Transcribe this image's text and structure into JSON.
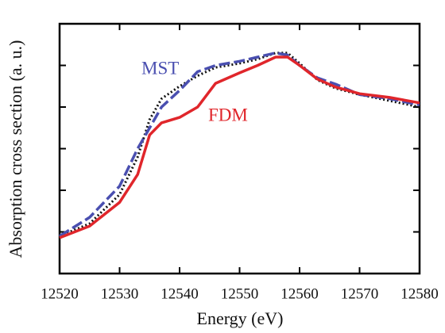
{
  "chart_data": {
    "type": "line",
    "x_label": "Energy (eV)",
    "y_label": "Absorption cross section (a. u.)",
    "x": [
      12520,
      12525,
      12530,
      12533,
      12535,
      12537,
      12540,
      12543,
      12546,
      12550,
      12553,
      12556,
      12558,
      12560,
      12563,
      12566,
      12570,
      12575,
      12580
    ],
    "series": [
      {
        "color": "#111111",
        "dash": "dot",
        "values": [
          0.9,
          1.2,
          1.9,
          2.8,
          3.7,
          4.2,
          4.5,
          4.75,
          4.95,
          5.05,
          5.15,
          5.3,
          5.3,
          5.05,
          4.65,
          4.45,
          4.3,
          4.15,
          4.0
        ]
      },
      {
        "name": "MST",
        "color": "#4a4fb0",
        "dash": "dash",
        "values": [
          0.9,
          1.35,
          2.1,
          3.0,
          3.5,
          4.0,
          4.4,
          4.85,
          5.0,
          5.1,
          5.2,
          5.3,
          5.25,
          5.0,
          4.7,
          4.55,
          4.3,
          4.2,
          4.05
        ]
      },
      {
        "name": "FDM",
        "color": "#e0262b",
        "dash": "solid",
        "values": [
          0.86,
          1.14,
          1.71,
          2.38,
          3.33,
          3.62,
          3.75,
          4.0,
          4.57,
          4.82,
          5.0,
          5.2,
          5.2,
          5.0,
          4.67,
          4.48,
          4.32,
          4.23,
          4.1
        ]
      }
    ],
    "xlim": [
      12520,
      12580
    ],
    "xticks": [
      12520,
      12530,
      12540,
      12550,
      12560,
      12570,
      12580
    ],
    "ylim": [
      0,
      6
    ],
    "yticks": [
      1,
      2,
      3,
      4,
      5
    ]
  }
}
